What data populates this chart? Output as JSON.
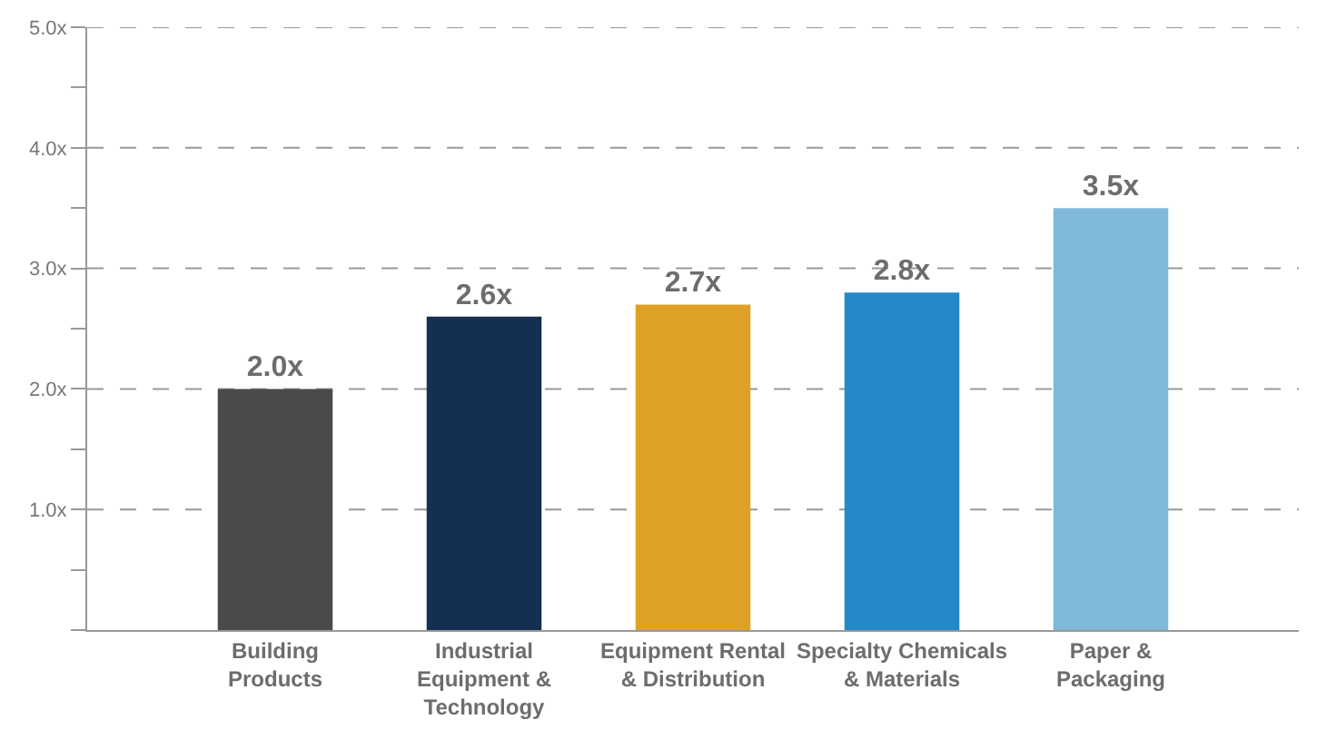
{
  "chart_data": {
    "type": "bar",
    "categories": [
      "Building\nProducts",
      "Industrial\nEquipment &\nTechnology",
      "Equipment Rental\n& Distribution",
      "Specialty Chemicals\n& Materials",
      "Paper &\nPackaging"
    ],
    "values": [
      2.0,
      2.6,
      2.7,
      2.8,
      3.5
    ],
    "colors": [
      "#4a4a4a",
      "#132f52",
      "#dea125",
      "#2489c6",
      "#80b8d8"
    ],
    "value_labels": [
      "2.0x",
      "2.6x",
      "2.7x",
      "2.8x",
      "3.5x"
    ],
    "ylim": [
      0,
      5
    ],
    "yticks": [
      {
        "value": 0,
        "label": null
      },
      {
        "value": 0.5,
        "label": null
      },
      {
        "value": 1,
        "label": "1.0x"
      },
      {
        "value": 1.5,
        "label": null
      },
      {
        "value": 2,
        "label": "2.0x"
      },
      {
        "value": 2.5,
        "label": null
      },
      {
        "value": 3,
        "label": "3.0x"
      },
      {
        "value": 3.5,
        "label": null
      },
      {
        "value": 4,
        "label": "4.0x"
      },
      {
        "value": 4.5,
        "label": null
      },
      {
        "value": 5,
        "label": "5.0x"
      }
    ],
    "grid": "y",
    "legend": false
  }
}
